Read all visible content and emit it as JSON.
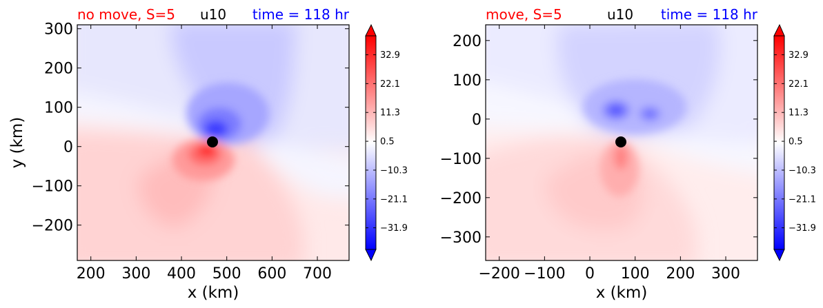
{
  "colors": {
    "left_title": "#ff0000",
    "center_title": "#000000",
    "right_title": "#0000ff",
    "colormap": "bwr"
  },
  "chart_data": [
    {
      "type": "heatmap",
      "title_left": "no move, S=5",
      "title_center": "u10",
      "title_right": "time = 118 hr",
      "xlabel": "x (km)",
      "ylabel": "y (km)",
      "xlim": [
        170,
        770
      ],
      "ylim": [
        -290,
        310
      ],
      "xticks": [
        200,
        300,
        400,
        500,
        600,
        700
      ],
      "xtick_labels": [
        "200",
        "300",
        "400",
        "500",
        "600",
        "700"
      ],
      "yticks": [
        -200,
        -100,
        0,
        100,
        200,
        300
      ],
      "ytick_labels": [
        "−200",
        "−100",
        "0",
        "100",
        "200",
        "300"
      ],
      "storm_center": {
        "x": 470,
        "y": 12
      },
      "features": [
        {
          "kind": "jet_max",
          "sign": "negative",
          "x": 485,
          "y": 45,
          "peak": -32
        },
        {
          "kind": "jet_max",
          "sign": "positive",
          "x": 455,
          "y": -25,
          "peak": 30
        }
      ],
      "colorbar": {
        "vmin": -40,
        "vmax": 40,
        "extend": "both",
        "tick_values": [
          32.9,
          22.1,
          11.3,
          0.5,
          -10.3,
          -21.1,
          -31.9
        ],
        "tick_labels": [
          "32.9",
          "22.1",
          "11.3",
          "0.5",
          "−10.3",
          "−21.1",
          "−31.9"
        ]
      },
      "grid": false
    },
    {
      "type": "heatmap",
      "title_left": "move, S=5",
      "title_center": "u10",
      "title_right": "time = 118 hr",
      "xlabel": "x (km)",
      "ylabel": "",
      "xlim": [
        -230,
        370
      ],
      "ylim": [
        -360,
        240
      ],
      "xticks": [
        -200,
        -100,
        0,
        100,
        200,
        300
      ],
      "xtick_labels": [
        "−200",
        "−100",
        "0",
        "100",
        "200",
        "300"
      ],
      "yticks": [
        -300,
        -200,
        -100,
        0,
        100,
        200
      ],
      "ytick_labels": [
        "−300",
        "−200",
        "−100",
        "0",
        "100",
        "200"
      ],
      "storm_center": {
        "x": 70,
        "y": -60
      },
      "features": [
        {
          "kind": "jet_max",
          "sign": "negative",
          "x": 65,
          "y": 10,
          "peak": -18
        },
        {
          "kind": "jet_max",
          "sign": "negative",
          "x": 140,
          "y": 5,
          "peak": -15
        },
        {
          "kind": "jet_max",
          "sign": "positive",
          "x": 72,
          "y": -100,
          "peak": 17
        }
      ],
      "colorbar": {
        "vmin": -40,
        "vmax": 40,
        "extend": "both",
        "tick_values": [
          32.9,
          22.1,
          11.3,
          0.5,
          -10.3,
          -21.1,
          -31.9
        ],
        "tick_labels": [
          "32.9",
          "22.1",
          "11.3",
          "0.5",
          "−10.3",
          "−21.1",
          "−31.9"
        ]
      },
      "grid": false
    }
  ]
}
